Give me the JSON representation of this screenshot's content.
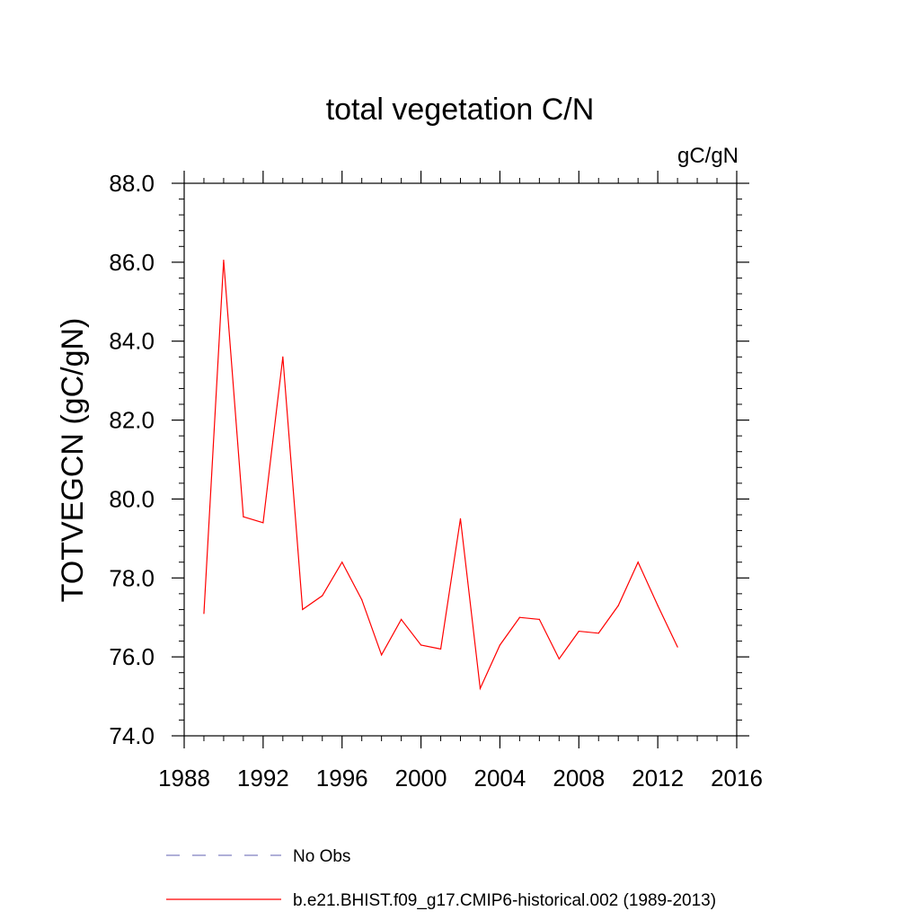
{
  "chart_data": {
    "type": "line",
    "title": "total vegetation C/N",
    "units_label": "gC/gN",
    "ylabel": "TOTVEGCN  (gC/gN)",
    "xlabel": "",
    "xlim": [
      1988,
      2016
    ],
    "ylim": [
      74.0,
      88.0
    ],
    "x_ticks": [
      1988,
      1992,
      1996,
      2000,
      2004,
      2008,
      2012,
      2016
    ],
    "x_tick_labels": [
      "1988",
      "1992",
      "1996",
      "2000",
      "2004",
      "2008",
      "2012",
      "2016"
    ],
    "y_ticks": [
      74.0,
      76.0,
      78.0,
      80.0,
      82.0,
      84.0,
      86.0,
      88.0
    ],
    "y_tick_labels": [
      "74.0",
      "76.0",
      "78.0",
      "80.0",
      "82.0",
      "84.0",
      "86.0",
      "88.0"
    ],
    "x": [
      1989,
      1990,
      1991,
      1992,
      1993,
      1994,
      1995,
      1996,
      1997,
      1998,
      1999,
      2000,
      2001,
      2002,
      2003,
      2004,
      2005,
      2006,
      2007,
      2008,
      2009,
      2010,
      2011,
      2012,
      2013
    ],
    "series": [
      {
        "name": "b.e21.BHIST.f09_g17.CMIP6-historical.002 (1989-2013)",
        "color": "#ff0000",
        "style": "solid",
        "values": [
          77.1,
          86.05,
          79.55,
          79.4,
          83.6,
          77.2,
          77.55,
          78.4,
          77.45,
          76.05,
          76.95,
          76.3,
          76.2,
          79.5,
          75.2,
          76.3,
          77.0,
          76.95,
          75.95,
          76.65,
          76.6,
          77.3,
          78.4,
          77.3,
          76.25
        ]
      }
    ],
    "legend": [
      {
        "label": "No Obs",
        "color": "#8080c0",
        "style": "dashed"
      },
      {
        "label": "b.e21.BHIST.f09_g17.CMIP6-historical.002 (1989-2013)",
        "color": "#ff0000",
        "style": "solid"
      }
    ],
    "legend_position": "bottom"
  }
}
